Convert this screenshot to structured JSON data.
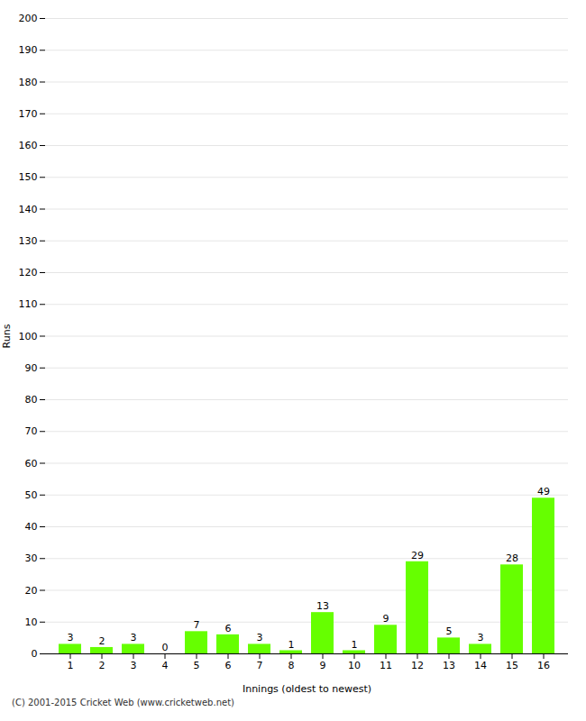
{
  "chart_data": {
    "type": "bar",
    "xlabel": "Innings (oldest to newest)",
    "ylabel": "Runs",
    "categories": [
      "1",
      "2",
      "3",
      "4",
      "5",
      "6",
      "7",
      "8",
      "9",
      "10",
      "11",
      "12",
      "13",
      "14",
      "15",
      "16"
    ],
    "values": [
      3,
      2,
      3,
      0,
      7,
      6,
      3,
      1,
      13,
      1,
      9,
      29,
      5,
      3,
      28,
      49
    ],
    "color": "#66ff00",
    "ylim": [
      0,
      200
    ],
    "yticks": [
      0,
      10,
      20,
      30,
      40,
      50,
      60,
      70,
      80,
      90,
      100,
      110,
      120,
      130,
      140,
      150,
      160,
      170,
      180,
      190,
      200
    ],
    "grid": true,
    "data_labels": true,
    "annotations": [
      "(C) 2001-2015 Cricket Web (www.cricketweb.net)"
    ]
  }
}
